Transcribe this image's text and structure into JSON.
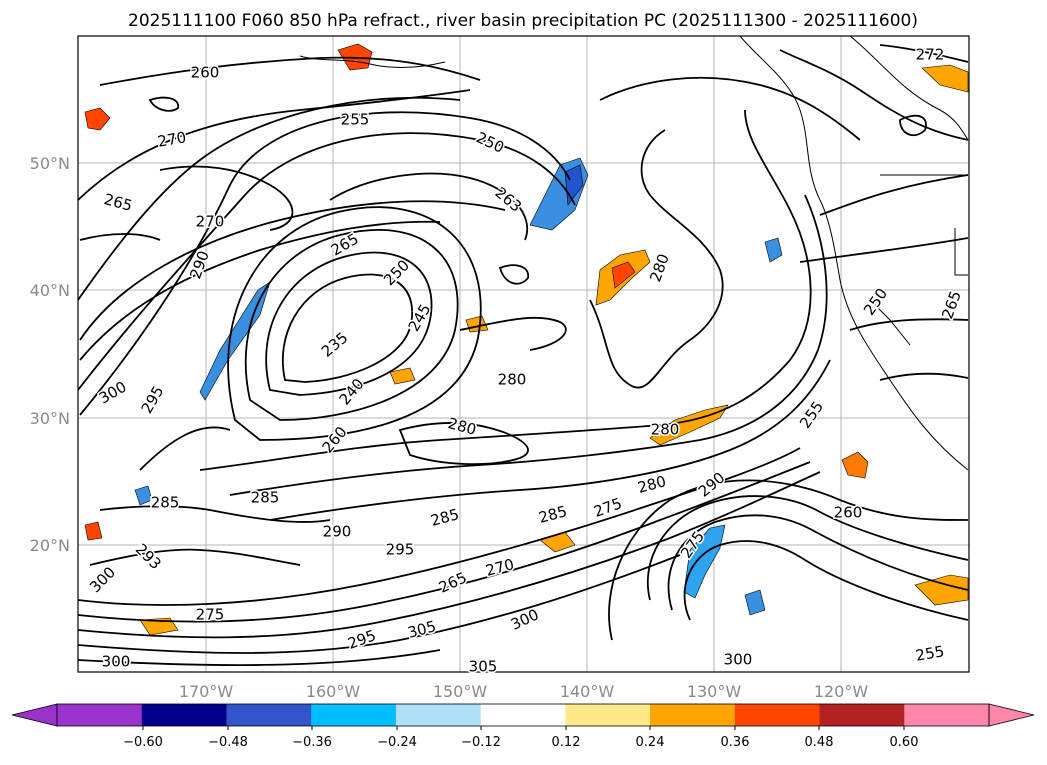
{
  "title": "2025111100 F060 850 hPa refract., river basin precipitation PC (2025111300 - 2025111600)",
  "map": {
    "lat_labels": [
      "50°N",
      "40°N",
      "30°N",
      "20°N"
    ],
    "lon_labels": [
      "170°W",
      "160°W",
      "150°W",
      "140°W",
      "130°W",
      "120°W"
    ],
    "grid": true,
    "contour_labels": [
      "260",
      "255",
      "250",
      "270",
      "265",
      "270",
      "265",
      "263",
      "250",
      "245",
      "235",
      "240",
      "260",
      "280",
      "280",
      "280",
      "285",
      "285",
      "290",
      "285",
      "285",
      "275",
      "280",
      "290",
      "275",
      "265",
      "270",
      "300",
      "305",
      "295",
      "275",
      "300",
      "300",
      "305",
      "300",
      "255",
      "260",
      "272",
      "255",
      "250",
      "265",
      "280",
      "300",
      "295",
      "290",
      "293",
      "295"
    ]
  },
  "colorbar": {
    "ticks": [
      "−0.60",
      "−0.48",
      "−0.36",
      "−0.24",
      "−0.12",
      "0.12",
      "0.24",
      "0.36",
      "0.48",
      "0.60"
    ],
    "colors": [
      "#9933cc",
      "#00008b",
      "#3355cc",
      "#00bfff",
      "#aee0f7",
      "#ffffff",
      "#ffe98a",
      "#ffa500",
      "#ff4500",
      "#b22222",
      "#ff88aa",
      "#ff88aa"
    ],
    "extend": "both"
  }
}
